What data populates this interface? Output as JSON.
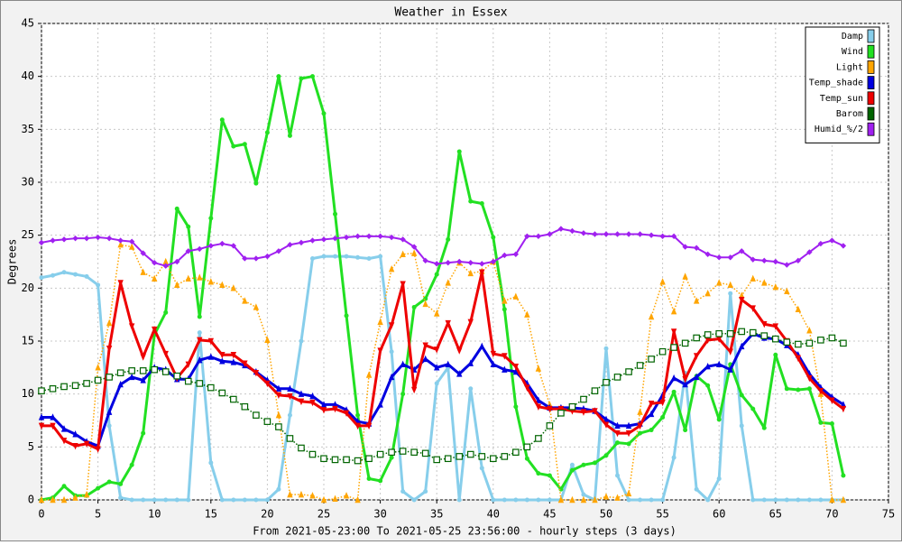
{
  "chart_data": {
    "type": "line",
    "title": "Weather in Essex",
    "y_label": "Degrees",
    "x_label": "From 2021-05-23:00 To 2021-05-25 23:56:00 - hourly steps (3 days)",
    "x": [
      0,
      1,
      2,
      3,
      4,
      5,
      6,
      7,
      8,
      9,
      10,
      11,
      12,
      13,
      14,
      15,
      16,
      17,
      18,
      19,
      20,
      21,
      22,
      23,
      24,
      25,
      26,
      27,
      28,
      29,
      30,
      31,
      32,
      33,
      34,
      35,
      36,
      37,
      38,
      39,
      40,
      41,
      42,
      43,
      44,
      45,
      46,
      47,
      48,
      49,
      50,
      51,
      52,
      53,
      54,
      55,
      56,
      57,
      58,
      59,
      60,
      61,
      62,
      63,
      64,
      65,
      66,
      67,
      68,
      69,
      70,
      71
    ],
    "xlim": [
      0,
      75
    ],
    "xticks": [
      0,
      5,
      10,
      15,
      20,
      25,
      30,
      35,
      40,
      45,
      50,
      55,
      60,
      65,
      70,
      75
    ],
    "ylim": [
      0,
      45
    ],
    "yticks": [
      0,
      5,
      10,
      15,
      20,
      25,
      30,
      35,
      40,
      45
    ],
    "grid": true,
    "legend": "upper right",
    "series": [
      {
        "name": "Damp",
        "color": "#87ceeb",
        "marker": "circle",
        "line_width": 3,
        "dash": false,
        "values": [
          21,
          21.2,
          21.5,
          21.3,
          21.1,
          20.3,
          7,
          0.2,
          0,
          0,
          0,
          0,
          0,
          0,
          15.8,
          3.5,
          0,
          0,
          0,
          0,
          0,
          1,
          8,
          15,
          22.8,
          23,
          23,
          23,
          22.9,
          22.8,
          23,
          14,
          0.8,
          0,
          0.8,
          11,
          12.5,
          0,
          10.5,
          3,
          0,
          0,
          0,
          0,
          0,
          0,
          0,
          3.3,
          0.5,
          0,
          14.3,
          2.3,
          0,
          0,
          0,
          0,
          4,
          12,
          1,
          0,
          2,
          19.5,
          7,
          0,
          0,
          0,
          0,
          0,
          0,
          0,
          0,
          0
        ]
      },
      {
        "name": "Wind",
        "color": "#22e022",
        "marker": "circle",
        "line_width": 3,
        "dash": false,
        "values": [
          0,
          0.2,
          1.3,
          0.4,
          0.4,
          1.1,
          1.7,
          1.5,
          3.3,
          6.3,
          15.6,
          17.7,
          27.5,
          25.8,
          17.3,
          26.6,
          35.9,
          33.4,
          33.6,
          29.9,
          34.7,
          40,
          34.4,
          39.8,
          40,
          36.5,
          27,
          17.4,
          8,
          2,
          1.8,
          4,
          10,
          18.2,
          19,
          21.3,
          24.6,
          32.9,
          28.2,
          28,
          24.8,
          18,
          8.8,
          3.9,
          2.5,
          2.3,
          1,
          2.8,
          3.3,
          3.5,
          4.2,
          5.4,
          5.3,
          6.3,
          6.6,
          7.8,
          10.2,
          6.6,
          11.7,
          10.8,
          7.6,
          12.8,
          9.9,
          8.6,
          6.8,
          13.7,
          10.5,
          10.4,
          10.5,
          7.3,
          7.2,
          2.3
        ]
      },
      {
        "name": "Light",
        "color": "#ffa500",
        "marker": "triangle-up",
        "line_width": 1.5,
        "dash": true,
        "values": [
          0,
          0,
          0,
          0.2,
          0.5,
          12.5,
          16.7,
          24.1,
          23.9,
          21.5,
          20.9,
          22.5,
          20.3,
          20.9,
          21,
          20.6,
          20.3,
          20,
          18.8,
          18.2,
          15.1,
          8,
          0.5,
          0.5,
          0.4,
          0,
          0.1,
          0.4,
          0,
          11.8,
          16.8,
          21.8,
          23.2,
          23.3,
          18.5,
          17.6,
          20.5,
          22.4,
          21.4,
          21.6,
          22.5,
          18.8,
          19.2,
          17.5,
          12.4,
          9,
          0,
          0,
          0,
          0,
          0.3,
          0.2,
          0.6,
          8.3,
          17.3,
          20.6,
          17.8,
          21.1,
          18.8,
          19.5,
          20.5,
          20.3,
          19.3,
          20.9,
          20.5,
          20.1,
          19.7,
          18,
          16,
          10,
          0,
          0
        ]
      },
      {
        "name": "Temp_shade",
        "color": "#0000e0",
        "marker": "triangle-up",
        "line_width": 3,
        "dash": false,
        "values": [
          7.8,
          7.8,
          6.7,
          6.2,
          5.5,
          5.1,
          8.3,
          10.9,
          11.6,
          11.3,
          12.5,
          12.3,
          11.4,
          11.4,
          13.2,
          13.5,
          13.1,
          13,
          12.7,
          12.1,
          11.3,
          10.5,
          10.5,
          10,
          9.8,
          9,
          9,
          8.5,
          7.4,
          7.2,
          9,
          11.6,
          12.8,
          12.3,
          13.3,
          12.5,
          12.8,
          11.9,
          12.9,
          14.5,
          12.8,
          12.3,
          12.1,
          11,
          9.4,
          8.7,
          8.7,
          8.7,
          8.6,
          8.4,
          7.6,
          7,
          7,
          7.2,
          8.1,
          9.9,
          11.5,
          10.9,
          11.6,
          12.6,
          12.8,
          12.3,
          14.5,
          15.7,
          15.3,
          15.2,
          14.6,
          13.7,
          11.9,
          10.6,
          9.7,
          9
        ]
      },
      {
        "name": "Temp_sun",
        "color": "#ee0000",
        "marker": "triangle-down",
        "line_width": 3,
        "dash": false,
        "values": [
          7,
          7,
          5.6,
          5.1,
          5.3,
          4.8,
          14.3,
          20.5,
          16.4,
          13.5,
          16.1,
          13.8,
          11.5,
          12.8,
          15.1,
          15,
          13.7,
          13.7,
          12.9,
          12,
          11,
          9.9,
          9.8,
          9.3,
          9.2,
          8.5,
          8.6,
          8.2,
          7,
          7,
          14.1,
          16.5,
          20.4,
          10.4,
          14.6,
          14.2,
          16.7,
          14.1,
          16.8,
          21.5,
          13.8,
          13.6,
          12.6,
          10.6,
          8.8,
          8.6,
          8.6,
          8.4,
          8.3,
          8.4,
          7.1,
          6.3,
          6.3,
          7,
          9.1,
          9.2,
          15.9,
          11.4,
          13.6,
          15.1,
          15.2,
          14,
          18.9,
          18.1,
          16.6,
          16.4,
          15,
          13.4,
          11.5,
          10.3,
          9.4,
          8.6
        ]
      },
      {
        "name": "Barom",
        "color": "#006400",
        "marker": "square",
        "line_width": 1.5,
        "dash": true,
        "values": [
          10.3,
          10.5,
          10.7,
          10.8,
          11,
          11.3,
          11.6,
          12,
          12.2,
          12.2,
          12.3,
          12.1,
          11.7,
          11.2,
          11,
          10.6,
          10.1,
          9.5,
          8.8,
          8,
          7.4,
          6.9,
          5.8,
          4.9,
          4.3,
          3.9,
          3.8,
          3.8,
          3.7,
          3.9,
          4.3,
          4.5,
          4.6,
          4.5,
          4.4,
          3.8,
          3.9,
          4.1,
          4.3,
          4.1,
          3.9,
          4.1,
          4.5,
          5,
          5.8,
          7,
          8.2,
          8.8,
          9.5,
          10.3,
          11.1,
          11.6,
          12.1,
          12.7,
          13.3,
          14,
          14.4,
          14.8,
          15.3,
          15.6,
          15.7,
          15.7,
          15.9,
          15.8,
          15.5,
          15.2,
          14.9,
          14.7,
          14.8,
          15.1,
          15.3,
          14.8
        ]
      },
      {
        "name": "Humid_%/2",
        "color": "#a020f0",
        "marker": "diamond",
        "line_width": 2,
        "dash": false,
        "values": [
          24.3,
          24.5,
          24.6,
          24.7,
          24.7,
          24.8,
          24.7,
          24.5,
          24.4,
          23.3,
          22.4,
          22.1,
          22.5,
          23.5,
          23.7,
          24,
          24.2,
          24,
          22.8,
          22.8,
          23,
          23.5,
          24.1,
          24.3,
          24.5,
          24.6,
          24.7,
          24.8,
          24.9,
          24.9,
          24.9,
          24.8,
          24.6,
          23.9,
          22.6,
          22.3,
          22.4,
          22.5,
          22.4,
          22.3,
          22.5,
          23.1,
          23.2,
          24.9,
          24.9,
          25.1,
          25.6,
          25.4,
          25.2,
          25.1,
          25.1,
          25.1,
          25.1,
          25.1,
          25,
          24.9,
          24.9,
          23.9,
          23.8,
          23.2,
          22.9,
          22.9,
          23.5,
          22.7,
          22.6,
          22.5,
          22.2,
          22.6,
          23.4,
          24.2,
          24.5,
          24
        ]
      }
    ]
  }
}
